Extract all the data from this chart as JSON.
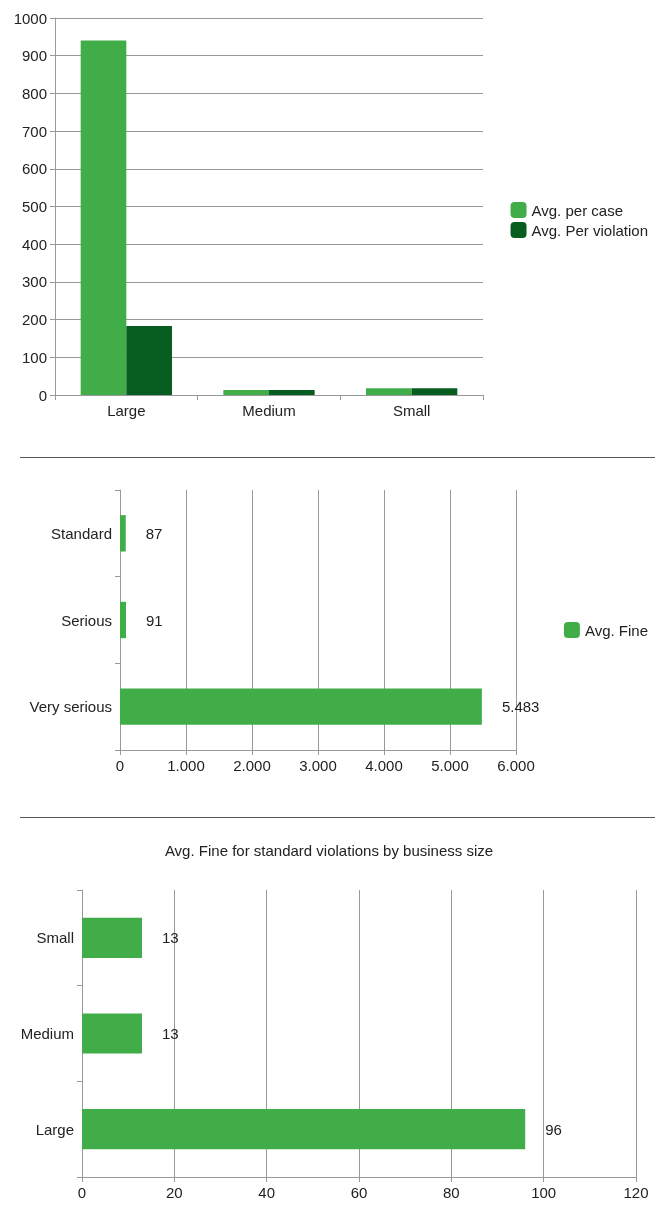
{
  "chart_data": [
    {
      "type": "bar",
      "categories": [
        "Large",
        "Medium",
        "Small"
      ],
      "series": [
        {
          "name": "Avg. per case",
          "color": "#41ad49",
          "values": [
            940,
            13,
            18
          ]
        },
        {
          "name": "Avg. Per violation",
          "color": "#075c20",
          "values": [
            183,
            13,
            18
          ]
        }
      ],
      "ylim": [
        0,
        1000
      ],
      "yticks": [
        0,
        100,
        200,
        300,
        400,
        500,
        600,
        700,
        800,
        900,
        1000
      ],
      "grid": "y",
      "legend": "right"
    },
    {
      "type": "bar",
      "orientation": "horizontal",
      "categories": [
        "Standard",
        "Serious",
        "Very serious"
      ],
      "series": [
        {
          "name": "Avg. Fine",
          "color": "#41ad49",
          "values": [
            87,
            91,
            5483
          ],
          "value_labels": [
            "87",
            "91",
            "5.483"
          ]
        }
      ],
      "xlim": [
        0,
        6000
      ],
      "xticks": [
        0,
        {
          "value": 1000,
          "label": "1.000"
        },
        {
          "value": 2000,
          "label": "2.000"
        },
        {
          "value": 3000,
          "label": "3.000"
        },
        {
          "value": 4000,
          "label": "4.000"
        },
        {
          "value": 5000,
          "label": "5.000"
        },
        {
          "value": 6000,
          "label": "6.000"
        }
      ],
      "grid": "x",
      "legend": "right"
    },
    {
      "type": "bar",
      "orientation": "horizontal",
      "title": "Avg. Fine for standard violations by business size",
      "categories": [
        "Small",
        "Medium",
        "Large"
      ],
      "series": [
        {
          "color": "#41ad49",
          "values": [
            13,
            13,
            96
          ]
        }
      ],
      "xlim": [
        0,
        120
      ],
      "xticks": [
        0,
        20,
        40,
        60,
        80,
        100,
        120
      ],
      "grid": "x",
      "data_labels": true
    }
  ]
}
